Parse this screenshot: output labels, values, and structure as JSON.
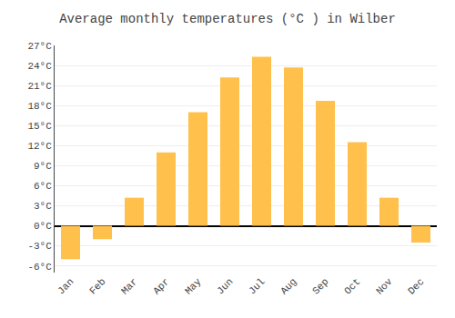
{
  "chart_data": {
    "type": "bar",
    "title": "Average monthly temperatures (°C ) in Wilber",
    "categories": [
      "Jan",
      "Feb",
      "Mar",
      "Apr",
      "May",
      "Jun",
      "Jul",
      "Aug",
      "Sep",
      "Oct",
      "Nov",
      "Dec"
    ],
    "values": [
      -5.0,
      -2.0,
      4.2,
      11.0,
      17.0,
      22.2,
      25.3,
      23.7,
      18.7,
      12.5,
      4.2,
      -2.5
    ],
    "color": "#FFC04C",
    "ylim": [
      -7,
      27
    ],
    "yticks": [
      {
        "value": -6,
        "label": "-6°C"
      },
      {
        "value": -3,
        "label": "-3°C"
      },
      {
        "value": 0,
        "label": "0°C"
      },
      {
        "value": 3,
        "label": "3°C"
      },
      {
        "value": 6,
        "label": "6°C"
      },
      {
        "value": 9,
        "label": "9°C"
      },
      {
        "value": 12,
        "label": "12°C"
      },
      {
        "value": 15,
        "label": "15°C"
      },
      {
        "value": 18,
        "label": "18°C"
      },
      {
        "value": 21,
        "label": "21°C"
      },
      {
        "value": 24,
        "label": "24°C"
      },
      {
        "value": 27,
        "label": "27°C"
      }
    ],
    "grid": true
  }
}
